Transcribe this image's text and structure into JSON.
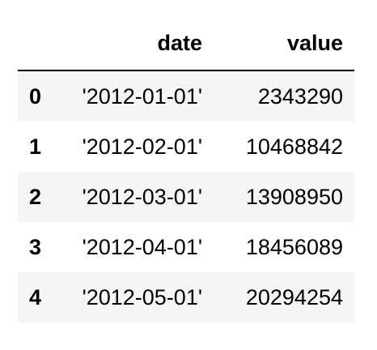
{
  "table": {
    "columns": [
      "",
      "date",
      "value"
    ],
    "rows": [
      {
        "index": "0",
        "date": "'2012-01-01'",
        "value": "2343290"
      },
      {
        "index": "1",
        "date": "'2012-02-01'",
        "value": "10468842"
      },
      {
        "index": "2",
        "date": "'2012-03-01'",
        "value": "13908950"
      },
      {
        "index": "3",
        "date": "'2012-04-01'",
        "value": "18456089"
      },
      {
        "index": "4",
        "date": "'2012-05-01'",
        "value": "20294254"
      }
    ]
  },
  "colors": {
    "stripe": "#f5f5f5",
    "background": "#ffffff",
    "text": "#000000",
    "header_rule": "#000000"
  }
}
